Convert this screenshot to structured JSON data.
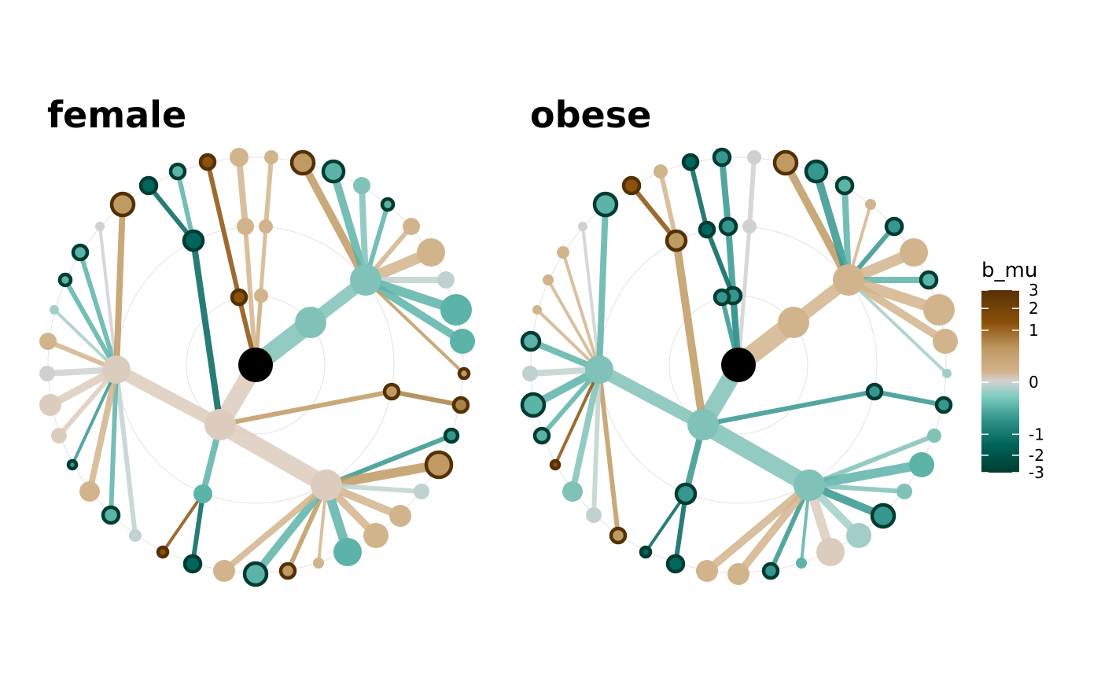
{
  "panels": [
    {
      "id": "female",
      "title": "female"
    },
    {
      "id": "obese",
      "title": "obese"
    }
  ],
  "legend": {
    "title": "b_mu",
    "ticks": [
      "3",
      "2",
      "1",
      "0",
      "-1",
      "-2",
      "-3"
    ],
    "min": -3,
    "max": 3,
    "colors": {
      "neg3": "#003c30",
      "neg2": "#01665e",
      "neg1": "#35978f",
      "neg05": "#80cdc1",
      "zero": "#d3d3d3",
      "pos05": "#d2b48c",
      "pos1": "#bf9a62",
      "pos2": "#8c510a",
      "pos3": "#543005"
    }
  },
  "node_ring_color": "#543005",
  "node_ring_color_negative": "#003c30",
  "root_color": "#000000"
}
